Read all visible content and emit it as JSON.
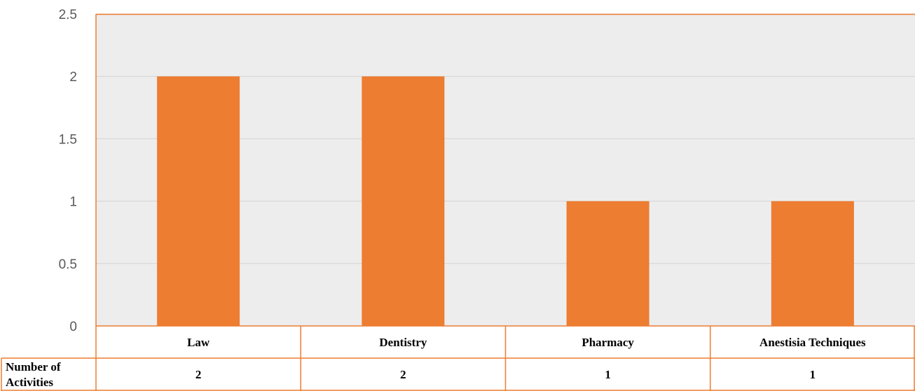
{
  "colors": {
    "bar": "#ED7D31",
    "plot_bg": "#EDEDED",
    "grid": "#D3D3D3",
    "border": "#ED7D31"
  },
  "chart_data": {
    "type": "bar",
    "categories": [
      "Law",
      "Dentistry",
      "Pharmacy",
      "Anestisia Techniques"
    ],
    "series": [
      {
        "values": [
          2,
          2,
          1,
          1
        ]
      }
    ],
    "ylim": [
      0,
      2.5
    ],
    "yticks": [
      "0",
      "0.5",
      "1",
      "1.5",
      "2",
      "2.5"
    ],
    "ytick_values": [
      0,
      0.5,
      1,
      1.5,
      2,
      2.5
    ],
    "grid": true,
    "legend": "none",
    "data_table": {
      "row_label": [
        "Number of",
        "Activities"
      ],
      "values": [
        "2",
        "2",
        "1",
        "1"
      ]
    }
  }
}
